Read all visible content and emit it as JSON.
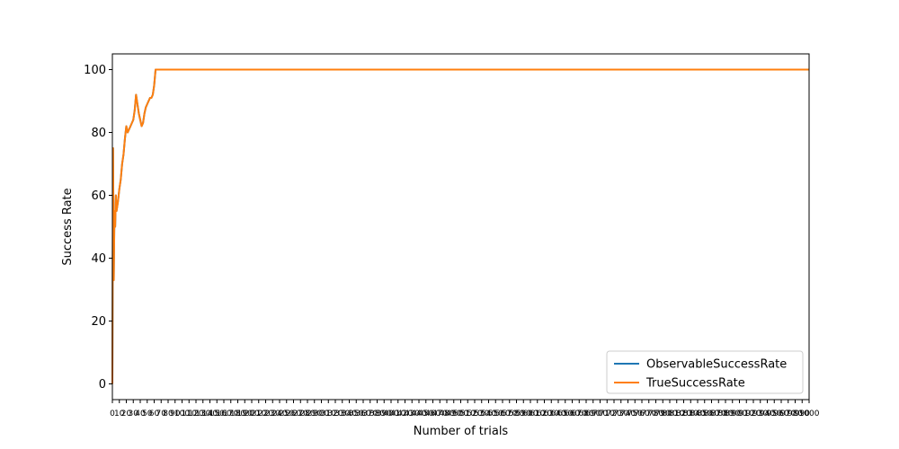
{
  "chart_data": {
    "type": "line",
    "title": "",
    "xlabel": "Number of trials",
    "ylabel": "Success Rate",
    "xlim": [
      0,
      1000
    ],
    "ylim": [
      -5,
      105
    ],
    "yticks": [
      0,
      20,
      40,
      60,
      80,
      100
    ],
    "xticks": [
      0,
      10,
      20,
      30,
      40,
      50,
      60,
      70,
      80,
      90,
      100,
      110,
      120,
      130,
      140,
      150,
      160,
      170,
      180,
      190,
      200,
      210,
      220,
      230,
      240,
      250,
      260,
      270,
      280,
      290,
      300,
      310,
      320,
      330,
      340,
      350,
      360,
      370,
      380,
      390,
      400,
      410,
      420,
      430,
      440,
      450,
      460,
      470,
      480,
      490,
      500,
      510,
      520,
      530,
      540,
      550,
      560,
      570,
      580,
      590,
      600,
      610,
      620,
      630,
      640,
      650,
      660,
      670,
      680,
      690,
      700,
      710,
      720,
      730,
      740,
      750,
      760,
      770,
      780,
      790,
      800,
      810,
      820,
      830,
      840,
      850,
      860,
      870,
      880,
      890,
      900,
      910,
      920,
      930,
      940,
      950,
      960,
      970,
      980,
      990,
      1000
    ],
    "grid": false,
    "legend_position": "bottom-right",
    "series": [
      {
        "name": "ObservableSuccessRate",
        "color": "#1f77b4",
        "x": [
          0,
          1,
          2,
          3,
          4,
          5,
          6,
          8,
          10,
          12,
          14,
          16,
          18,
          20,
          22,
          24,
          26,
          28,
          30,
          32,
          34,
          36,
          38,
          40,
          42,
          44,
          46,
          48,
          50,
          52,
          54,
          56,
          58,
          60,
          62,
          64,
          66,
          68,
          70,
          72,
          74,
          76,
          78,
          80,
          1000
        ],
        "y": [
          0,
          75,
          33,
          55,
          50,
          60,
          55,
          58,
          62,
          65,
          70,
          73,
          78,
          82,
          80,
          81,
          82,
          83,
          84,
          87,
          92,
          89,
          86,
          84,
          82,
          83,
          86,
          88,
          89,
          90,
          91,
          91,
          92,
          95,
          100,
          100,
          100,
          100,
          100,
          100,
          100,
          100,
          100,
          100,
          100
        ]
      },
      {
        "name": "TrueSuccessRate",
        "color": "#ff7f0e",
        "x": [
          0,
          1,
          2,
          3,
          4,
          5,
          6,
          8,
          10,
          12,
          14,
          16,
          18,
          20,
          22,
          24,
          26,
          28,
          30,
          32,
          34,
          36,
          38,
          40,
          42,
          44,
          46,
          48,
          50,
          52,
          54,
          56,
          58,
          60,
          62,
          64,
          66,
          68,
          70,
          72,
          74,
          76,
          78,
          80,
          1000
        ],
        "y": [
          0,
          75,
          33,
          55,
          50,
          60,
          55,
          58,
          62,
          65,
          70,
          73,
          78,
          82,
          80,
          81,
          82,
          83,
          84,
          87,
          92,
          89,
          86,
          84,
          82,
          83,
          86,
          88,
          89,
          90,
          91,
          91,
          92,
          95,
          100,
          100,
          100,
          100,
          100,
          100,
          100,
          100,
          100,
          100,
          100
        ]
      }
    ]
  }
}
